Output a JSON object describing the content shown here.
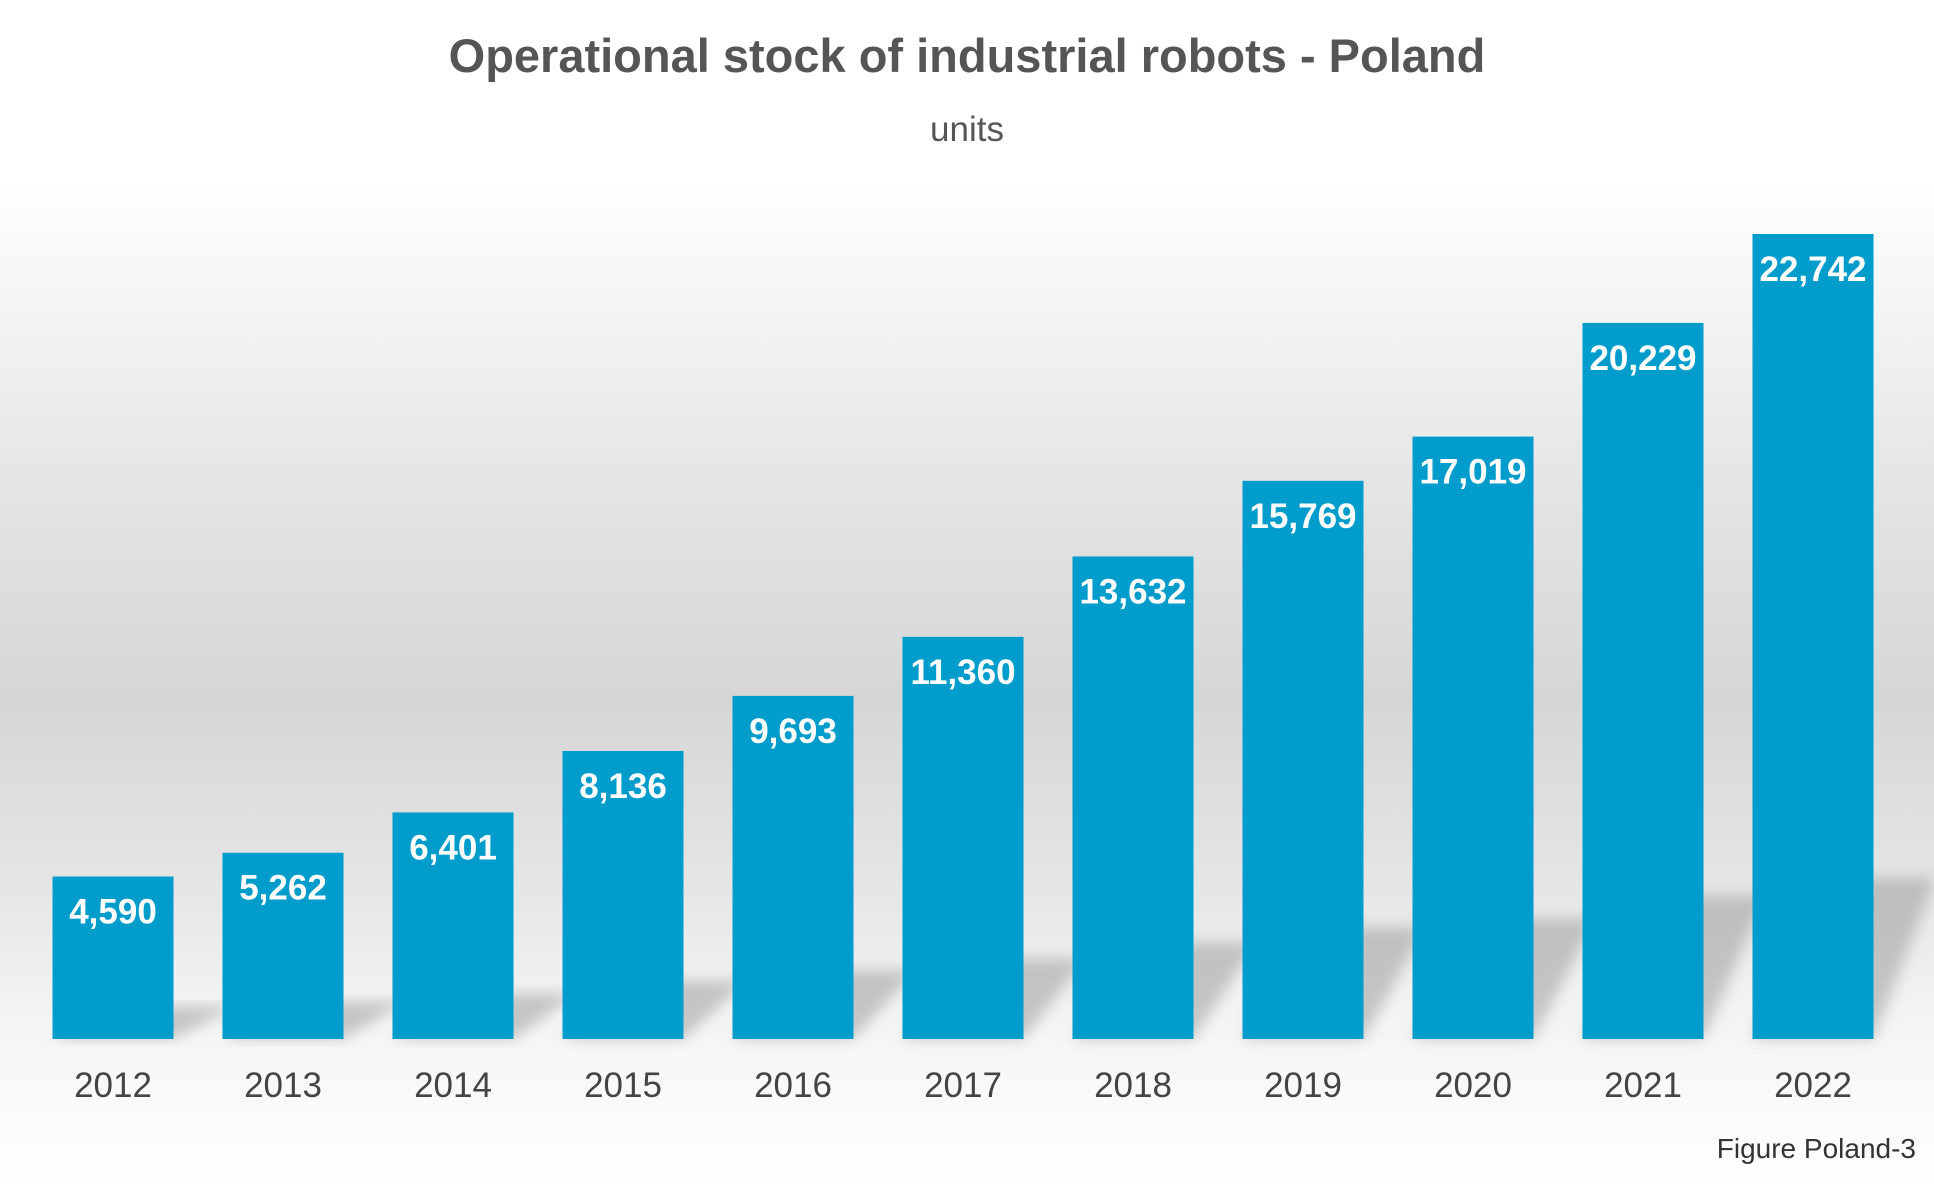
{
  "chart_data": {
    "type": "bar",
    "title": "Operational stock of industrial robots - Poland",
    "subtitle": "units",
    "categories": [
      "2012",
      "2013",
      "2014",
      "2015",
      "2016",
      "2017",
      "2018",
      "2019",
      "2020",
      "2021",
      "2022"
    ],
    "values": [
      4590,
      5262,
      6401,
      8136,
      9693,
      11360,
      13632,
      15769,
      17019,
      20229,
      22742
    ],
    "data_labels": [
      "4,590",
      "5,262",
      "6,401",
      "8,136",
      "9,693",
      "11,360",
      "13,632",
      "15,769",
      "17,019",
      "20,229",
      "22,742"
    ],
    "xlabel": "",
    "ylabel": "",
    "ylim": [
      0,
      23000
    ],
    "grid": false,
    "legend": "none",
    "bar_color": "#009ccc"
  },
  "caption": "Figure Poland-3"
}
